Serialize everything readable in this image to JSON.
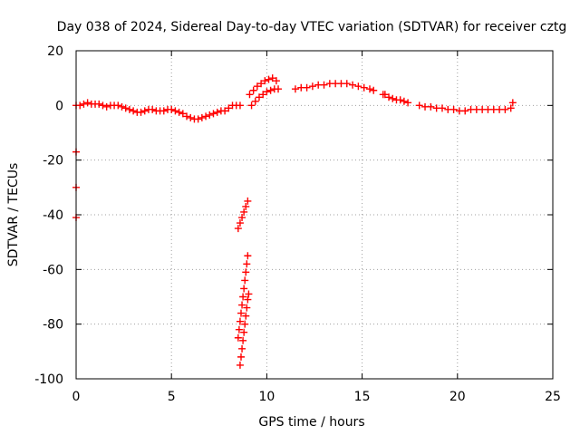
{
  "chart_data": {
    "type": "scatter",
    "title": "Day 038 of 2024, Sidereal Day-to-day VTEC variation (SDTVAR) for receiver cztg",
    "xlabel": "GPS time / hours",
    "ylabel": "SDTVAR / TECUs",
    "xlim": [
      0,
      25
    ],
    "ylim": [
      -100,
      20
    ],
    "xticks": [
      0,
      5,
      10,
      15,
      20,
      25
    ],
    "xtick_labels": [
      "0",
      "5",
      "10",
      "15",
      "20",
      "25"
    ],
    "yticks": [
      20,
      0,
      -20,
      -40,
      -60,
      -80,
      -100
    ],
    "ytick_labels": [
      "20",
      "0",
      "-20",
      "-40",
      "-60",
      "-80",
      "-100"
    ],
    "grid": true,
    "marker": "plus",
    "color": "#ff0000",
    "series": [
      {
        "name": "SDTVAR",
        "x": [
          0.0,
          0.0,
          0.0,
          0.0,
          0.2,
          0.4,
          0.6,
          0.8,
          1.0,
          1.2,
          1.4,
          1.6,
          1.8,
          2.0,
          2.2,
          2.4,
          2.6,
          2.8,
          3.0,
          3.2,
          3.4,
          3.6,
          3.8,
          4.0,
          4.2,
          4.4,
          4.6,
          4.8,
          5.0,
          5.2,
          5.4,
          5.6,
          5.8,
          6.0,
          6.2,
          6.4,
          6.6,
          6.8,
          7.0,
          7.2,
          7.4,
          7.6,
          7.8,
          8.0,
          8.2,
          8.4,
          8.6,
          8.5,
          8.6,
          8.7,
          8.8,
          8.9,
          9.0,
          8.6,
          8.65,
          8.7,
          8.75,
          8.8,
          8.85,
          8.9,
          8.95,
          9.0,
          9.05,
          8.5,
          8.55,
          8.6,
          8.65,
          8.7,
          8.75,
          8.8,
          8.85,
          8.9,
          8.95,
          9.0,
          9.1,
          9.3,
          9.5,
          9.7,
          9.9,
          10.1,
          10.3,
          10.5,
          9.2,
          9.4,
          9.6,
          9.8,
          10.0,
          10.2,
          10.4,
          10.6,
          11.5,
          11.8,
          12.1,
          12.4,
          12.7,
          13.0,
          13.3,
          13.6,
          13.9,
          14.2,
          14.5,
          14.8,
          15.1,
          15.4,
          15.6,
          16.1,
          16.2,
          16.4,
          16.6,
          16.8,
          17.0,
          17.2,
          17.4,
          18.0,
          18.3,
          18.6,
          18.9,
          19.2,
          19.5,
          19.8,
          20.1,
          20.4,
          20.7,
          21.0,
          21.3,
          21.6,
          21.9,
          22.2,
          22.5,
          22.8,
          22.9
        ],
        "y": [
          -17,
          -30,
          -41,
          0,
          0,
          0.5,
          1,
          0.5,
          0.5,
          0.5,
          0,
          -0.5,
          0,
          0,
          0,
          -0.5,
          -1,
          -1.5,
          -2,
          -2.5,
          -2.5,
          -2,
          -1.5,
          -1.5,
          -2,
          -2,
          -2,
          -1.5,
          -1.5,
          -2,
          -2.5,
          -3,
          -4,
          -4.5,
          -5,
          -5,
          -4.5,
          -4,
          -3.5,
          -3,
          -2.5,
          -2,
          -2,
          -1,
          0,
          0,
          0,
          -45,
          -43,
          -41,
          -39,
          -37,
          -35,
          -95,
          -92,
          -89,
          -86,
          -83,
          -80,
          -77,
          -74,
          -71,
          -69,
          -85,
          -82,
          -79,
          -76,
          -73,
          -70,
          -67,
          -64,
          -61,
          -58,
          -55,
          4,
          5.5,
          7,
          8,
          9,
          9.5,
          10,
          9,
          0,
          1.5,
          3,
          4,
          5,
          5.5,
          6,
          6,
          6,
          6.5,
          6.5,
          7,
          7.5,
          7.5,
          8,
          8,
          8,
          8,
          7.5,
          7,
          6.5,
          6,
          5.5,
          4,
          4,
          3,
          2.5,
          2,
          2,
          1.5,
          1,
          0,
          -0.5,
          -0.5,
          -1,
          -1,
          -1.5,
          -1.5,
          -2,
          -2,
          -1.5,
          -1.5,
          -1.5,
          -1.5,
          -1.5,
          -1.5,
          -1.5,
          -1,
          1
        ]
      }
    ]
  }
}
